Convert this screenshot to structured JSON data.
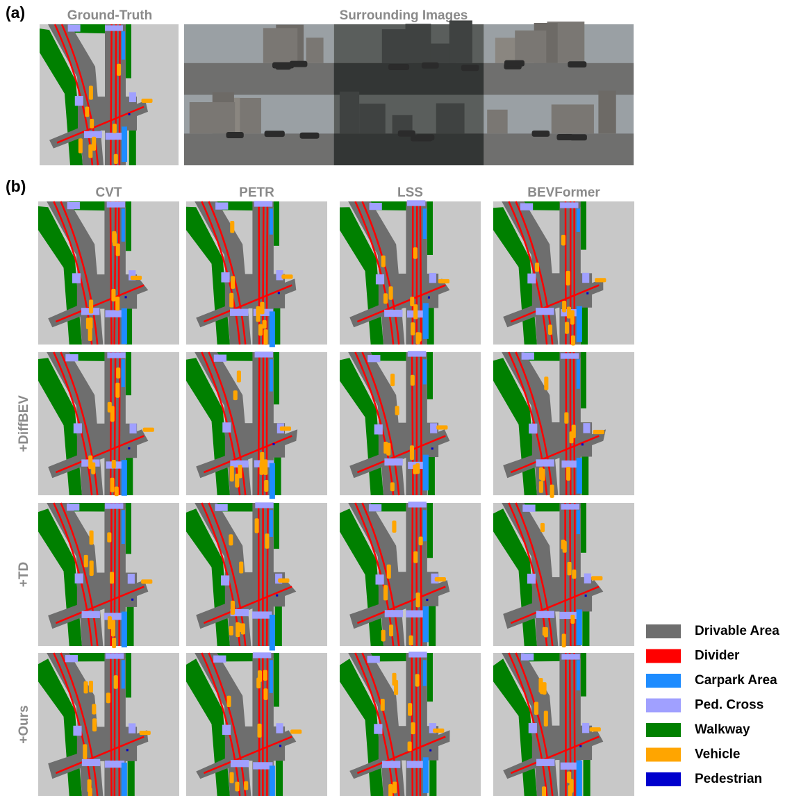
{
  "panel_a": {
    "label": "(a)",
    "ground_truth_title": "Ground-Truth",
    "surrounding_title": "Surrounding Images"
  },
  "panel_b": {
    "label": "(b)",
    "columns": [
      "CVT",
      "PETR",
      "LSS",
      "BEVFormer"
    ],
    "rows": [
      "+DiffBEV",
      "+TD",
      "+Ours"
    ]
  },
  "legend": [
    "Drivable Area",
    "Divider",
    "Carpark Area",
    "Ped. Cross",
    "Walkway",
    "Vehicle",
    "Pedestrian"
  ]
}
